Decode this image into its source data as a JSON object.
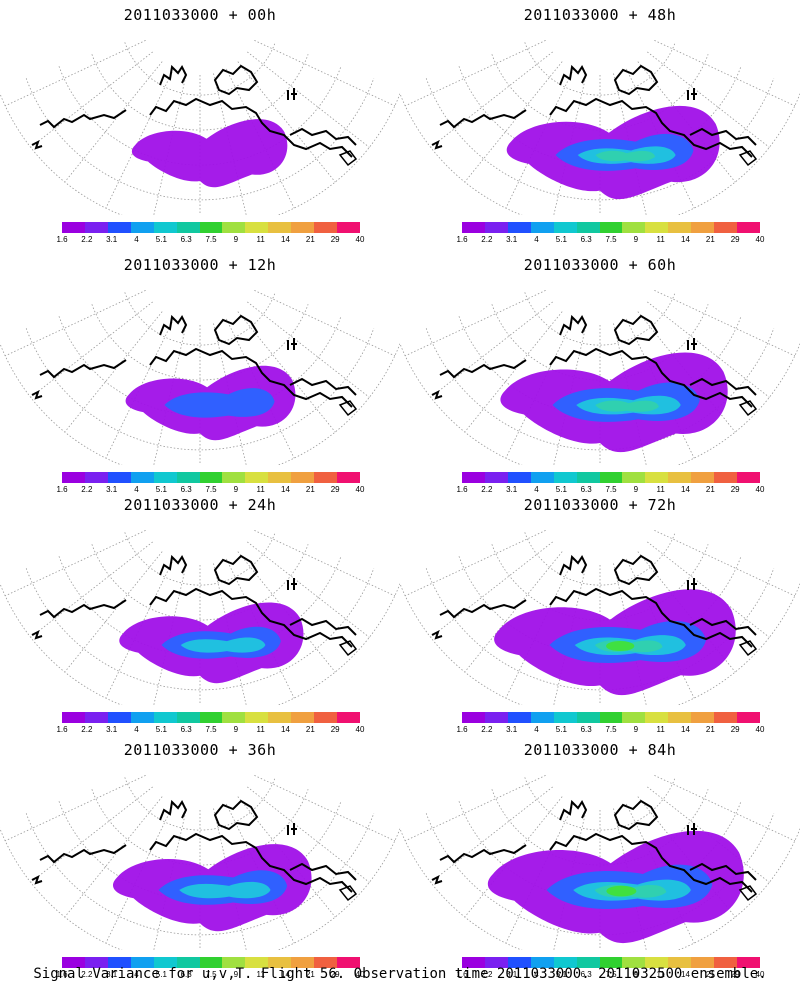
{
  "panels": [
    {
      "title": "2011033000 + 00h",
      "level": 0
    },
    {
      "title": "2011033000 + 48h",
      "level": 4
    },
    {
      "title": "2011033000 + 12h",
      "level": 1
    },
    {
      "title": "2011033000 + 60h",
      "level": 5
    },
    {
      "title": "2011033000 + 24h",
      "level": 2
    },
    {
      "title": "2011033000 + 72h",
      "level": 6
    },
    {
      "title": "2011033000 + 36h",
      "level": 3
    },
    {
      "title": "2011033000 + 84h",
      "level": 7
    }
  ],
  "colorbar": {
    "labels": [
      "1.6",
      "2.2",
      "3.1",
      "4",
      "5.1",
      "6.3",
      "7.5",
      "9",
      "11",
      "14",
      "21",
      "29",
      "40"
    ],
    "colors": [
      "#9a00e0",
      "#7a20f0",
      "#2050ff",
      "#10a0f0",
      "#10c8d0",
      "#10c8a0",
      "#30d030",
      "#a0e040",
      "#d8e040",
      "#e8c040",
      "#f0a040",
      "#f06040",
      "#f01070"
    ]
  },
  "caption": "Signal Variance for u,v,T. Flight 56. Observation time 2011033000. 2011032500 ensemble."
}
